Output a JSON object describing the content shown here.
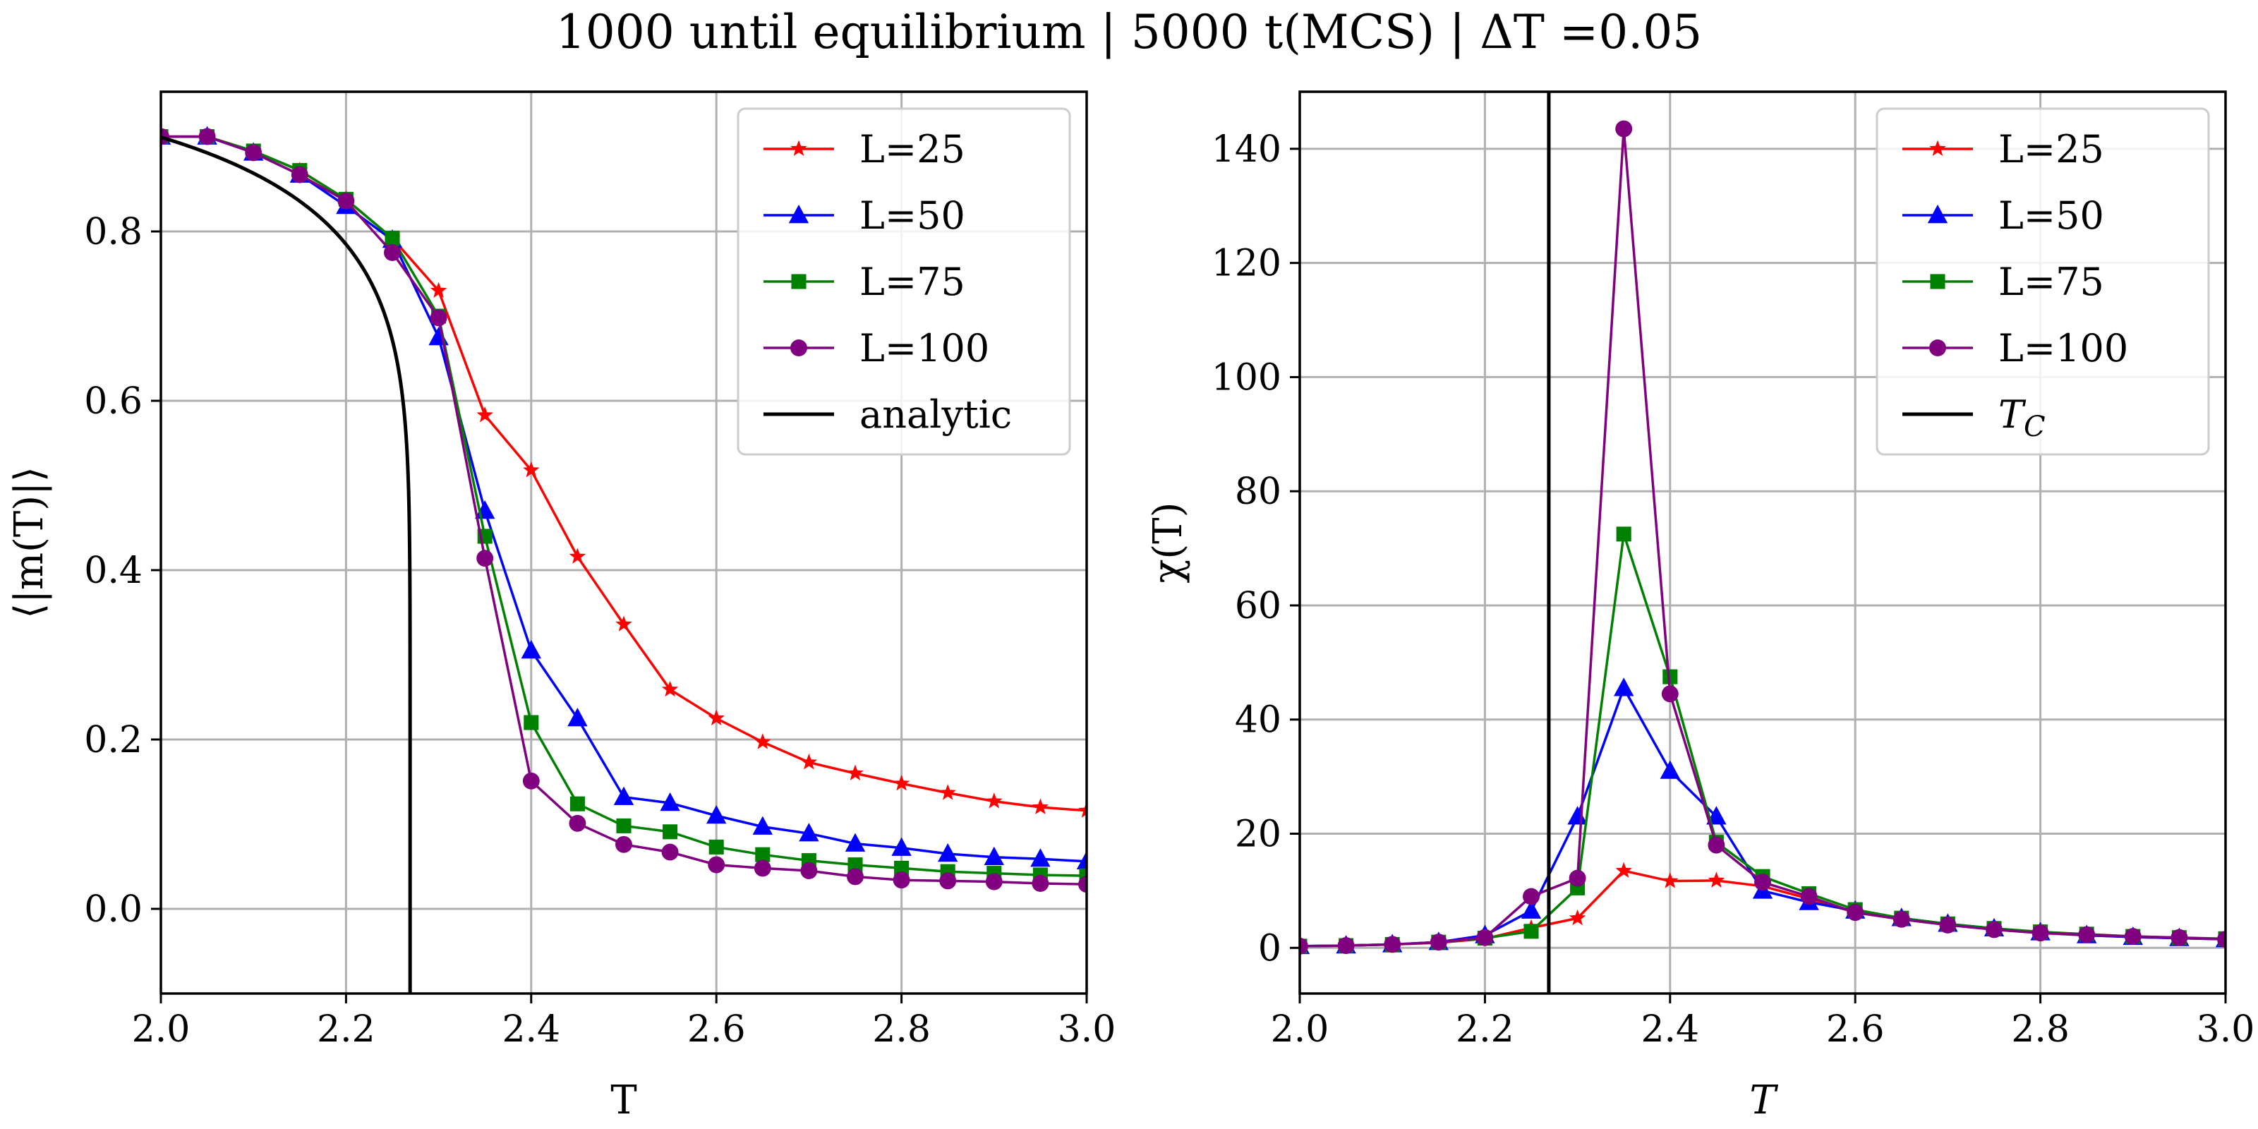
{
  "figure": {
    "title": "1000 until equilibrium | 5000 t(MCS) | ΔT =0.05"
  },
  "chart_data": [
    {
      "type": "line",
      "title": "",
      "xlabel": "T",
      "ylabel": "⟨|m(T)|⟩",
      "xlim": [
        2.0,
        3.0
      ],
      "ylim": [
        -0.1,
        0.965
      ],
      "xticks": [
        "2.0",
        "2.2",
        "2.4",
        "2.6",
        "2.8",
        "3.0"
      ],
      "yticks": [
        "0.0",
        "0.2",
        "0.4",
        "0.6",
        "0.8"
      ],
      "grid": true,
      "legend_position": "top-right",
      "x": [
        2.0,
        2.05,
        2.1,
        2.15,
        2.2,
        2.25,
        2.3,
        2.35,
        2.4,
        2.45,
        2.5,
        2.55,
        2.6,
        2.65,
        2.7,
        2.75,
        2.8,
        2.85,
        2.9,
        2.95,
        3.0
      ],
      "series": [
        {
          "name": "L=25",
          "color": "#ff0000",
          "marker": "star",
          "values": [
            0.912,
            0.912,
            0.895,
            0.872,
            0.838,
            0.792,
            0.73,
            0.583,
            0.518,
            0.416,
            0.336,
            0.259,
            0.225,
            0.197,
            0.173,
            0.16,
            0.148,
            0.137,
            0.127,
            0.12,
            0.116
          ]
        },
        {
          "name": "L=50",
          "color": "#0000ff",
          "marker": "triangle",
          "values": [
            0.912,
            0.912,
            0.893,
            0.867,
            0.83,
            0.79,
            0.675,
            0.47,
            0.305,
            0.225,
            0.132,
            0.125,
            0.11,
            0.097,
            0.089,
            0.077,
            0.072,
            0.065,
            0.061,
            0.059,
            0.056
          ]
        },
        {
          "name": "L=75",
          "color": "#008000",
          "marker": "square",
          "values": [
            0.912,
            0.912,
            0.895,
            0.872,
            0.838,
            0.792,
            0.7,
            0.44,
            0.22,
            0.124,
            0.098,
            0.091,
            0.073,
            0.064,
            0.057,
            0.052,
            0.048,
            0.044,
            0.042,
            0.04,
            0.039
          ]
        },
        {
          "name": "L=100",
          "color": "#800080",
          "marker": "circle",
          "values": [
            0.912,
            0.912,
            0.893,
            0.867,
            0.836,
            0.775,
            0.698,
            0.414,
            0.151,
            0.101,
            0.076,
            0.067,
            0.052,
            0.048,
            0.045,
            0.038,
            0.034,
            0.033,
            0.032,
            0.03,
            0.029
          ]
        },
        {
          "name": "analytic",
          "color": "#000000",
          "marker": "none",
          "kind": "analytic-magnetization"
        }
      ]
    },
    {
      "type": "line",
      "title": "",
      "xlabel": "T",
      "ylabel": "χ(T)",
      "xlim": [
        2.0,
        3.0
      ],
      "ylim": [
        -8,
        150
      ],
      "xticks": [
        "2.0",
        "2.2",
        "2.4",
        "2.6",
        "2.8",
        "3.0"
      ],
      "yticks": [
        "0",
        "20",
        "40",
        "60",
        "80",
        "100",
        "120",
        "140"
      ],
      "grid": true,
      "legend_position": "top-right",
      "x": [
        2.0,
        2.05,
        2.1,
        2.15,
        2.2,
        2.25,
        2.3,
        2.35,
        2.4,
        2.45,
        2.5,
        2.55,
        2.6,
        2.65,
        2.7,
        2.75,
        2.8,
        2.85,
        2.9,
        2.95,
        3.0
      ],
      "series": [
        {
          "name": "L=25",
          "color": "#ff0000",
          "marker": "star",
          "values": [
            0.3,
            0.4,
            0.6,
            0.9,
            1.6,
            3.5,
            5.2,
            13.5,
            11.7,
            11.8,
            10.8,
            8.6,
            6.2,
            5.0,
            4.1,
            3.2,
            2.6,
            2.2,
            1.9,
            1.7,
            1.5
          ]
        },
        {
          "name": "L=50",
          "color": "#0000ff",
          "marker": "triangle",
          "values": [
            0.3,
            0.4,
            0.6,
            1.0,
            2.2,
            6.5,
            23.0,
            45.5,
            31.0,
            23.0,
            10.0,
            8.0,
            6.5,
            5.2,
            4.2,
            3.4,
            2.7,
            2.2,
            1.9,
            1.7,
            1.5
          ]
        },
        {
          "name": "L=75",
          "color": "#008000",
          "marker": "square",
          "values": [
            0.3,
            0.4,
            0.6,
            1.0,
            1.7,
            2.9,
            10.5,
            72.5,
            47.5,
            18.5,
            12.5,
            9.5,
            6.7,
            5.2,
            4.2,
            3.4,
            2.8,
            2.4,
            2.0,
            1.8,
            1.6
          ]
        },
        {
          "name": "L=100",
          "color": "#800080",
          "marker": "circle",
          "values": [
            0.3,
            0.4,
            0.6,
            1.0,
            1.8,
            9.0,
            12.2,
            143.5,
            44.5,
            18.0,
            11.5,
            9.0,
            6.2,
            5.0,
            4.0,
            3.2,
            2.6,
            2.3,
            2.0,
            1.8,
            1.5
          ]
        },
        {
          "name": "T_C",
          "color": "#000000",
          "marker": "none",
          "kind": "vertical-line",
          "x": 2.269
        }
      ]
    }
  ]
}
